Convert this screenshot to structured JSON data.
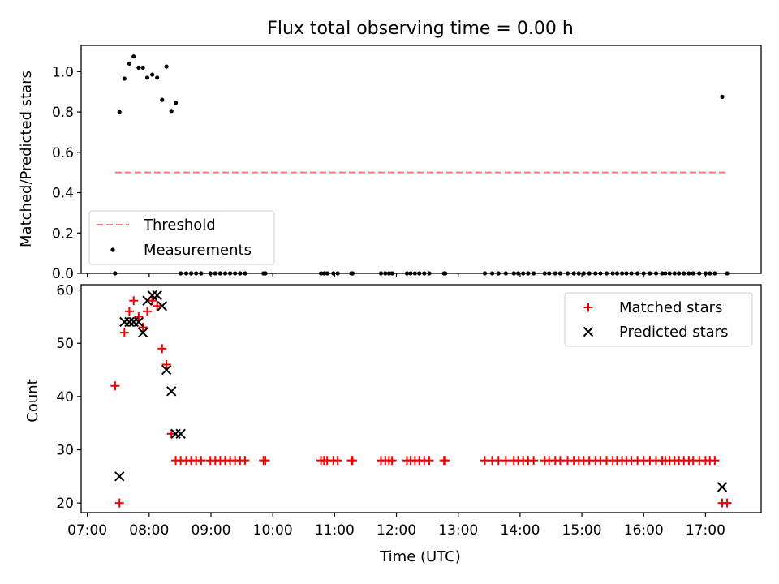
{
  "title": "Flux total observing time = 0.00 h",
  "chart_data": [
    {
      "type": "scatter",
      "panel": "top",
      "ylabel": "Matched/Predicted stars",
      "ylim": [
        0,
        1.13
      ],
      "yticks": [
        "0.0",
        "0.2",
        "0.4",
        "0.6",
        "0.8",
        "1.0"
      ],
      "xlim": [
        6.9,
        17.9
      ],
      "legend_position": "lower-left",
      "threshold": {
        "name": "Threshold",
        "value": 0.5,
        "x": [
          7.45,
          17.33
        ],
        "color": "#ff7777"
      },
      "measurements": {
        "name": "Measurements",
        "color": "#000000",
        "x": [
          7.45,
          7.52,
          7.6,
          7.68,
          7.75,
          7.83,
          7.9,
          7.97,
          8.05,
          8.13,
          8.21,
          8.28,
          8.36,
          8.43,
          8.51,
          8.6,
          8.68,
          8.76,
          8.84,
          8.99,
          9.07,
          9.15,
          9.23,
          9.31,
          9.39,
          9.47,
          9.55,
          9.85,
          9.88,
          10.78,
          10.83,
          10.88,
          10.98,
          11.05,
          11.27,
          11.29,
          11.75,
          11.82,
          11.88,
          11.93,
          12.17,
          12.23,
          12.3,
          12.37,
          12.45,
          12.53,
          12.77,
          12.79,
          13.43,
          13.55,
          13.65,
          13.77,
          13.9,
          13.97,
          14.05,
          14.13,
          14.22,
          14.4,
          14.47,
          14.57,
          14.65,
          14.77,
          14.87,
          14.95,
          15.03,
          15.12,
          15.22,
          15.3,
          15.4,
          15.5,
          15.57,
          15.65,
          15.72,
          15.8,
          15.9,
          16.0,
          16.1,
          16.2,
          16.3,
          16.35,
          16.42,
          16.5,
          16.57,
          16.65,
          16.73,
          16.8,
          16.9,
          17.0,
          17.07,
          17.15,
          17.27,
          17.35
        ],
        "y": [
          0,
          0.8,
          0.965,
          1.04,
          1.075,
          1.02,
          1.02,
          0.97,
          0.985,
          0.97,
          0.86,
          1.025,
          0.805,
          0.845,
          0,
          0,
          0,
          0,
          0,
          0,
          0,
          0,
          0,
          0,
          0,
          0,
          0,
          0,
          0,
          0,
          0,
          0,
          0,
          0,
          0,
          0,
          0,
          0,
          0,
          0,
          0,
          0,
          0,
          0,
          0,
          0,
          0,
          0,
          0,
          0,
          0,
          0,
          0,
          0,
          0,
          0,
          0,
          0,
          0,
          0,
          0,
          0,
          0,
          0,
          0,
          0,
          0,
          0,
          0,
          0,
          0,
          0,
          0,
          0,
          0,
          0,
          0,
          0,
          0,
          0,
          0,
          0,
          0,
          0,
          0,
          0,
          0,
          0,
          0,
          0,
          0.875,
          0
        ]
      }
    },
    {
      "type": "scatter",
      "panel": "bottom",
      "xlabel": "Time (UTC)",
      "ylabel": "Count",
      "ylim": [
        18.2,
        61
      ],
      "yticks": [
        "20",
        "30",
        "40",
        "50",
        "60"
      ],
      "xlim": [
        6.9,
        17.9
      ],
      "xticks": [
        {
          "v": 7,
          "label": "07:00"
        },
        {
          "v": 8,
          "label": "08:00"
        },
        {
          "v": 9,
          "label": "09:00"
        },
        {
          "v": 10,
          "label": "10:00"
        },
        {
          "v": 11,
          "label": "11:00"
        },
        {
          "v": 12,
          "label": "12:00"
        },
        {
          "v": 13,
          "label": "13:00"
        },
        {
          "v": 14,
          "label": "14:00"
        },
        {
          "v": 15,
          "label": "15:00"
        },
        {
          "v": 16,
          "label": "16:00"
        },
        {
          "v": 17,
          "label": "17:00"
        }
      ],
      "legend_position": "upper-right",
      "series": [
        {
          "name": "Matched stars",
          "marker": "+",
          "color": "#ee0000",
          "x": [
            7.45,
            7.52,
            7.6,
            7.68,
            7.75,
            7.83,
            7.9,
            7.97,
            8.05,
            8.13,
            8.21,
            8.28,
            8.36,
            8.43,
            8.51,
            8.6,
            8.68,
            8.76,
            8.84,
            8.99,
            9.07,
            9.15,
            9.23,
            9.31,
            9.39,
            9.47,
            9.55,
            9.85,
            9.88,
            10.78,
            10.83,
            10.88,
            10.98,
            11.05,
            11.27,
            11.29,
            11.75,
            11.82,
            11.88,
            11.93,
            12.17,
            12.23,
            12.3,
            12.37,
            12.45,
            12.53,
            12.77,
            12.79,
            13.43,
            13.55,
            13.65,
            13.77,
            13.9,
            13.97,
            14.05,
            14.13,
            14.22,
            14.4,
            14.47,
            14.57,
            14.65,
            14.77,
            14.87,
            14.95,
            15.03,
            15.12,
            15.22,
            15.3,
            15.4,
            15.5,
            15.57,
            15.65,
            15.72,
            15.8,
            15.9,
            16.0,
            16.1,
            16.2,
            16.3,
            16.35,
            16.42,
            16.5,
            16.57,
            16.65,
            16.73,
            16.8,
            16.9,
            17.0,
            17.07,
            17.15,
            17.27,
            17.35
          ],
          "y": [
            42,
            20,
            52,
            56,
            58,
            55,
            53,
            56,
            58,
            57,
            49,
            46,
            33,
            28,
            28,
            28,
            28,
            28,
            28,
            28,
            28,
            28,
            28,
            28,
            28,
            28,
            28,
            28,
            28,
            28,
            28,
            28,
            28,
            28,
            28,
            28,
            28,
            28,
            28,
            28,
            28,
            28,
            28,
            28,
            28,
            28,
            28,
            28,
            28,
            28,
            28,
            28,
            28,
            28,
            28,
            28,
            28,
            28,
            28,
            28,
            28,
            28,
            28,
            28,
            28,
            28,
            28,
            28,
            28,
            28,
            28,
            28,
            28,
            28,
            28,
            28,
            28,
            28,
            28,
            28,
            28,
            28,
            28,
            28,
            28,
            28,
            28,
            28,
            28,
            28,
            20,
            20
          ]
        },
        {
          "name": "Predicted stars",
          "marker": "x",
          "color": "#000000",
          "x": [
            7.52,
            7.6,
            7.68,
            7.75,
            7.83,
            7.9,
            7.97,
            8.05,
            8.13,
            8.21,
            8.28,
            8.36,
            8.43,
            8.51,
            17.27
          ],
          "y": [
            25,
            54,
            54,
            54,
            54,
            52,
            58,
            59,
            59,
            57,
            45,
            41,
            33,
            33,
            23
          ]
        }
      ]
    }
  ]
}
